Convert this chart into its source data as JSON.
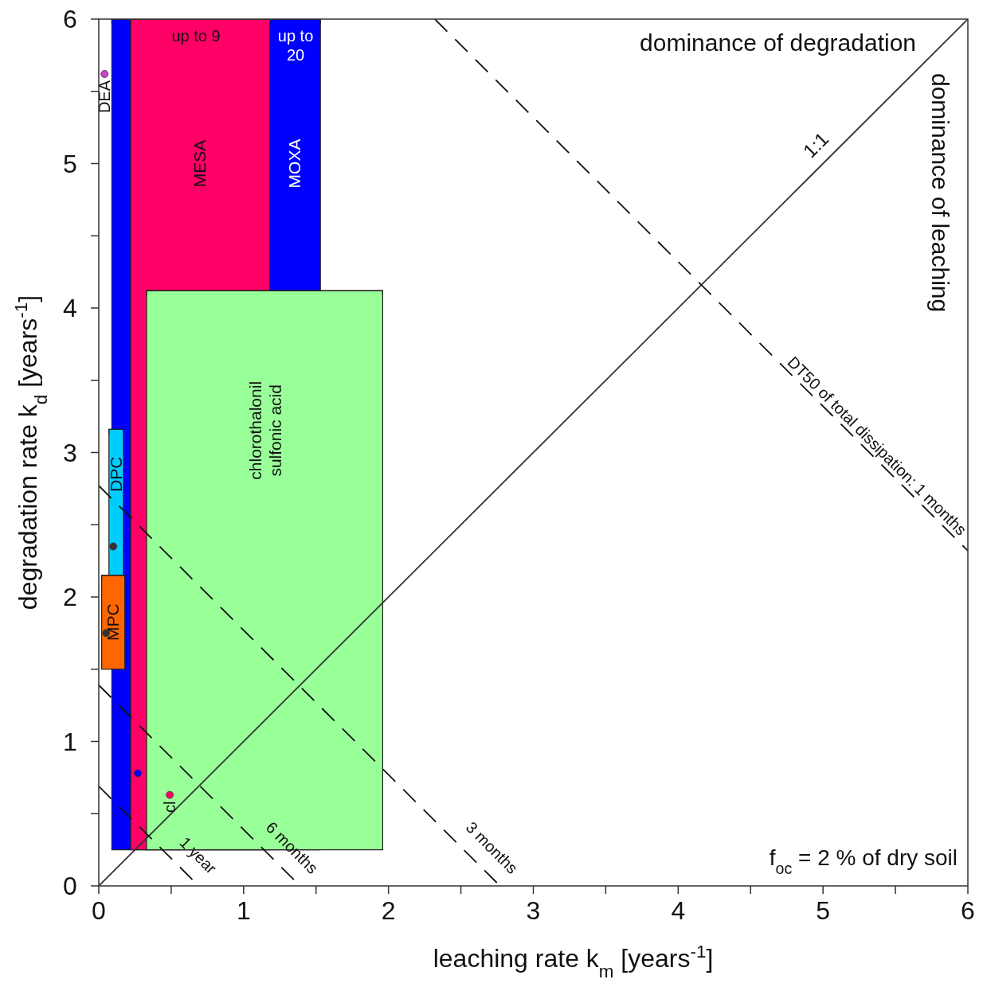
{
  "chart_data": {
    "type": "scatter",
    "xlabel": "leaching rate k$_{m}$ [years$^{-1}$]",
    "ylabel": "degradation rate k$_{d}$ [years$^{-1}$]",
    "xlim": [
      0,
      6
    ],
    "ylim": [
      0,
      6
    ],
    "xticks": [
      0,
      {
        "value": 0.5,
        "label": null
      },
      1,
      {
        "value": 1.5,
        "label": null
      },
      2,
      {
        "value": 2.5,
        "label": null
      },
      3,
      {
        "value": 3.5,
        "label": null
      },
      4,
      {
        "value": 4.5,
        "label": null
      },
      5,
      {
        "value": 5.5,
        "label": null
      },
      6
    ],
    "yticks": [
      0,
      {
        "value": 0.5,
        "label": null
      },
      1,
      {
        "value": 1.5,
        "label": null
      },
      2,
      {
        "value": 2.5,
        "label": null
      },
      3,
      {
        "value": 3.5,
        "label": null
      },
      4,
      {
        "value": 4.5,
        "label": null
      },
      5,
      {
        "value": 5.5,
        "label": null
      },
      6
    ],
    "series": [
      {
        "name": "MOXA",
        "type": "bar",
        "color": "#0000ff",
        "x": [
          0.81
        ],
        "base": [
          0.25
        ],
        "values": [
          5.75
        ],
        "xerrors": [
          [
            0.09,
            1.53
          ]
        ]
      },
      {
        "name": "MESA",
        "type": "bar",
        "color": "#ff0066",
        "x": [
          0.7
        ],
        "base": [
          0.25
        ],
        "values": [
          5.75
        ],
        "xerrors": [
          [
            0.22,
            1.18
          ]
        ]
      },
      {
        "name": "chlorothalonil sulfonic acid",
        "type": "bar",
        "color": "#99ff99",
        "x": [
          1.145
        ],
        "base": [
          0.25
        ],
        "values": [
          3.87
        ],
        "xerrors": [
          [
            0.33,
            1.96
          ]
        ]
      },
      {
        "name": "DPC",
        "type": "bar",
        "color": "#00ccff",
        "x": [
          0.12
        ],
        "base": [
          1.92
        ],
        "values": [
          1.24
        ],
        "xerrors": [
          [
            0.07,
            0.17
          ]
        ]
      },
      {
        "name": "MPC",
        "type": "bar",
        "color": "#ff6600",
        "x": [
          0.1
        ],
        "base": [
          1.5
        ],
        "values": [
          0.65
        ],
        "xerrors": [
          [
            0.02,
            0.18
          ]
        ]
      },
      {
        "type": "line",
        "line_style": "solid",
        "color": "#333333",
        "x": [
          0,
          6
        ],
        "values": [
          0,
          6
        ]
      },
      {
        "name": "1 year",
        "type": "line",
        "line_style": "dashed",
        "color": "#111111",
        "x": [
          0,
          0.69
        ],
        "values": [
          0.69,
          0
        ]
      },
      {
        "name": "6 months",
        "type": "line",
        "line_style": "dashed",
        "color": "#111111",
        "x": [
          0,
          1.39
        ],
        "values": [
          1.39,
          0
        ]
      },
      {
        "name": "3 months",
        "type": "line",
        "line_style": "dashed",
        "color": "#111111",
        "x": [
          0,
          2.77
        ],
        "values": [
          2.77,
          0
        ]
      },
      {
        "name": "DT50 of total dissipation: 1 months",
        "type": "line",
        "line_style": "dashed",
        "color": "#111111",
        "x": [
          2.32,
          6
        ],
        "values": [
          6,
          2.32
        ]
      },
      {
        "marker": "circle",
        "color": "#333333",
        "x": [
          0.1,
          0.05
        ],
        "values": [
          2.35,
          1.75
        ]
      },
      {
        "name": "DEA",
        "marker": "circle",
        "color": "#cc44cc",
        "x": [
          0.04
        ],
        "values": [
          5.62
        ]
      },
      {
        "marker": "circle",
        "color": "#0000ff",
        "x": [
          0.27
        ],
        "values": [
          0.78
        ]
      },
      {
        "name": "cl",
        "marker": "circle",
        "color": "#ff0066",
        "x": [
          0.49
        ],
        "values": [
          0.63
        ]
      }
    ],
    "annotations": [
      "up to 9",
      "up to 20",
      "1:1",
      "dominance of degradation",
      "dominance of leaching",
      "f$_{oc}$ = 2 % of dry soil"
    ]
  }
}
